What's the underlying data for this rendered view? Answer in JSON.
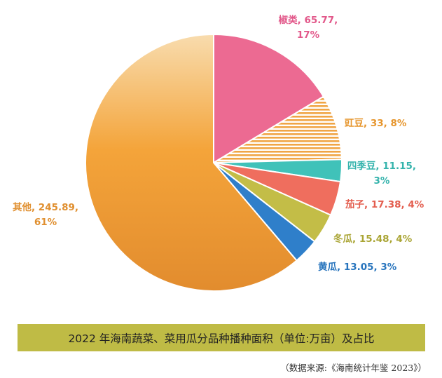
{
  "chart_data": {
    "type": "pie",
    "title": "2022 年海南蔬菜、菜用瓜分品种播种面积（单位:万亩）及占比",
    "source": "（数据来源:《海南统计年鉴 2023》）",
    "slices": [
      {
        "name": "椒类",
        "value": 65.77,
        "percent": "17%",
        "color": "#ec6a92"
      },
      {
        "name": "豇豆",
        "value": 33,
        "percent": "8%",
        "color": "#f0a545"
      },
      {
        "name": "四季豆",
        "value": 11.15,
        "percent": "3%",
        "color": "#40c2b9"
      },
      {
        "name": "茄子",
        "value": 17.38,
        "percent": "4%",
        "color": "#ef6e5e"
      },
      {
        "name": "冬瓜",
        "value": 15.48,
        "percent": "4%",
        "color": "#c3bd47"
      },
      {
        "name": "黄瓜",
        "value": 13.05,
        "percent": "3%",
        "color": "#2f7fca"
      },
      {
        "name": "其他",
        "value": 245.89,
        "percent": "61%",
        "color": "#ee9a3d"
      }
    ],
    "labels": [
      {
        "line1": "椒类, 65.77,",
        "line2": "17%",
        "color": "#e2588a"
      },
      {
        "line1": "豇豆, 33, 8%",
        "line2": "",
        "color": "#e6952c"
      },
      {
        "line1": "四季豆, 11.15,",
        "line2": "3%",
        "color": "#34b3ac"
      },
      {
        "line1": "茄子, 17.38, 4%",
        "line2": "",
        "color": "#e35d4e"
      },
      {
        "line1": "冬瓜, 15.48, 4%",
        "line2": "",
        "color": "#aaa535"
      },
      {
        "line1": "黄瓜, 13.05, 3%",
        "line2": "",
        "color": "#2774bd"
      },
      {
        "line1": "其他, 245.89,",
        "line2": "61%",
        "color": "#e08f2f"
      }
    ]
  }
}
